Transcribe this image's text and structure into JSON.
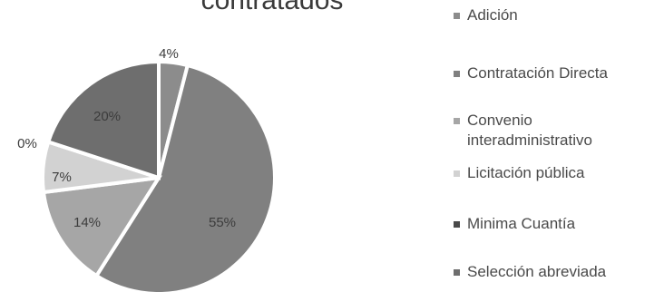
{
  "chart_data": {
    "type": "pie",
    "title": "contratados",
    "categories": [
      "Adición",
      "Contratación Directa",
      "Convenio interadministrativo",
      "Licitación pública",
      "Minima Cuantía",
      "Selección abreviada"
    ],
    "values": [
      4,
      55,
      14,
      7,
      0,
      20
    ],
    "data_labels": [
      "4%",
      "55%",
      "14%",
      "7%",
      "0%",
      "20%"
    ],
    "colors": [
      "#8c8c8c",
      "#808080",
      "#a6a6a6",
      "#d2d2d2",
      "#4a4a4a",
      "#6e6e6e"
    ],
    "legend_placement": "right",
    "legend_labels": [
      "Adición",
      "Contratación Directa",
      "Convenio\ninteradministrativo",
      "Licitación pública",
      "Minima Cuantía",
      "Selección abreviada"
    ]
  }
}
